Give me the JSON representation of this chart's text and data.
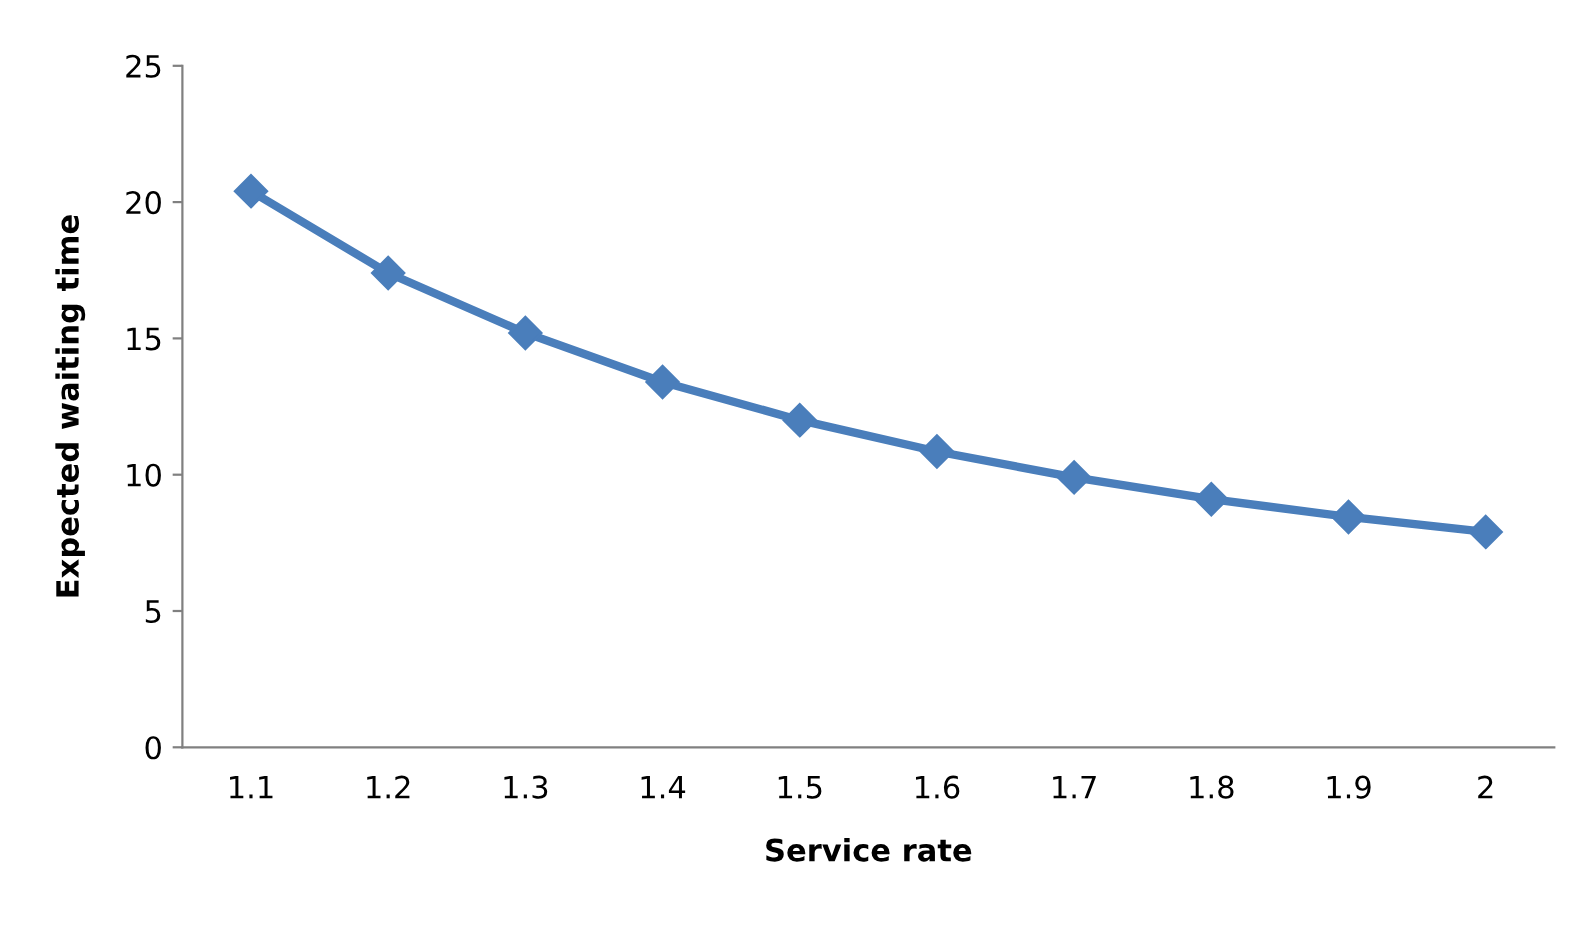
{
  "chart_data": {
    "type": "line",
    "xlabel": "Service rate",
    "ylabel": "Expected waiting time",
    "categories": [
      "1.1",
      "1.2",
      "1.3",
      "1.4",
      "1.5",
      "1.6",
      "1.7",
      "1.8",
      "1.9",
      "2"
    ],
    "series": [
      {
        "color": "#4a7ebb",
        "values": [
          20.4,
          17.4,
          15.2,
          13.4,
          12.0,
          10.85,
          9.9,
          9.1,
          8.45,
          7.9
        ]
      }
    ],
    "ylim": [
      0,
      25
    ],
    "yticks": [
      0,
      5,
      10,
      15,
      20,
      25
    ],
    "marker": "diamond",
    "line_style": "solid",
    "grid": false,
    "legend": false
  }
}
